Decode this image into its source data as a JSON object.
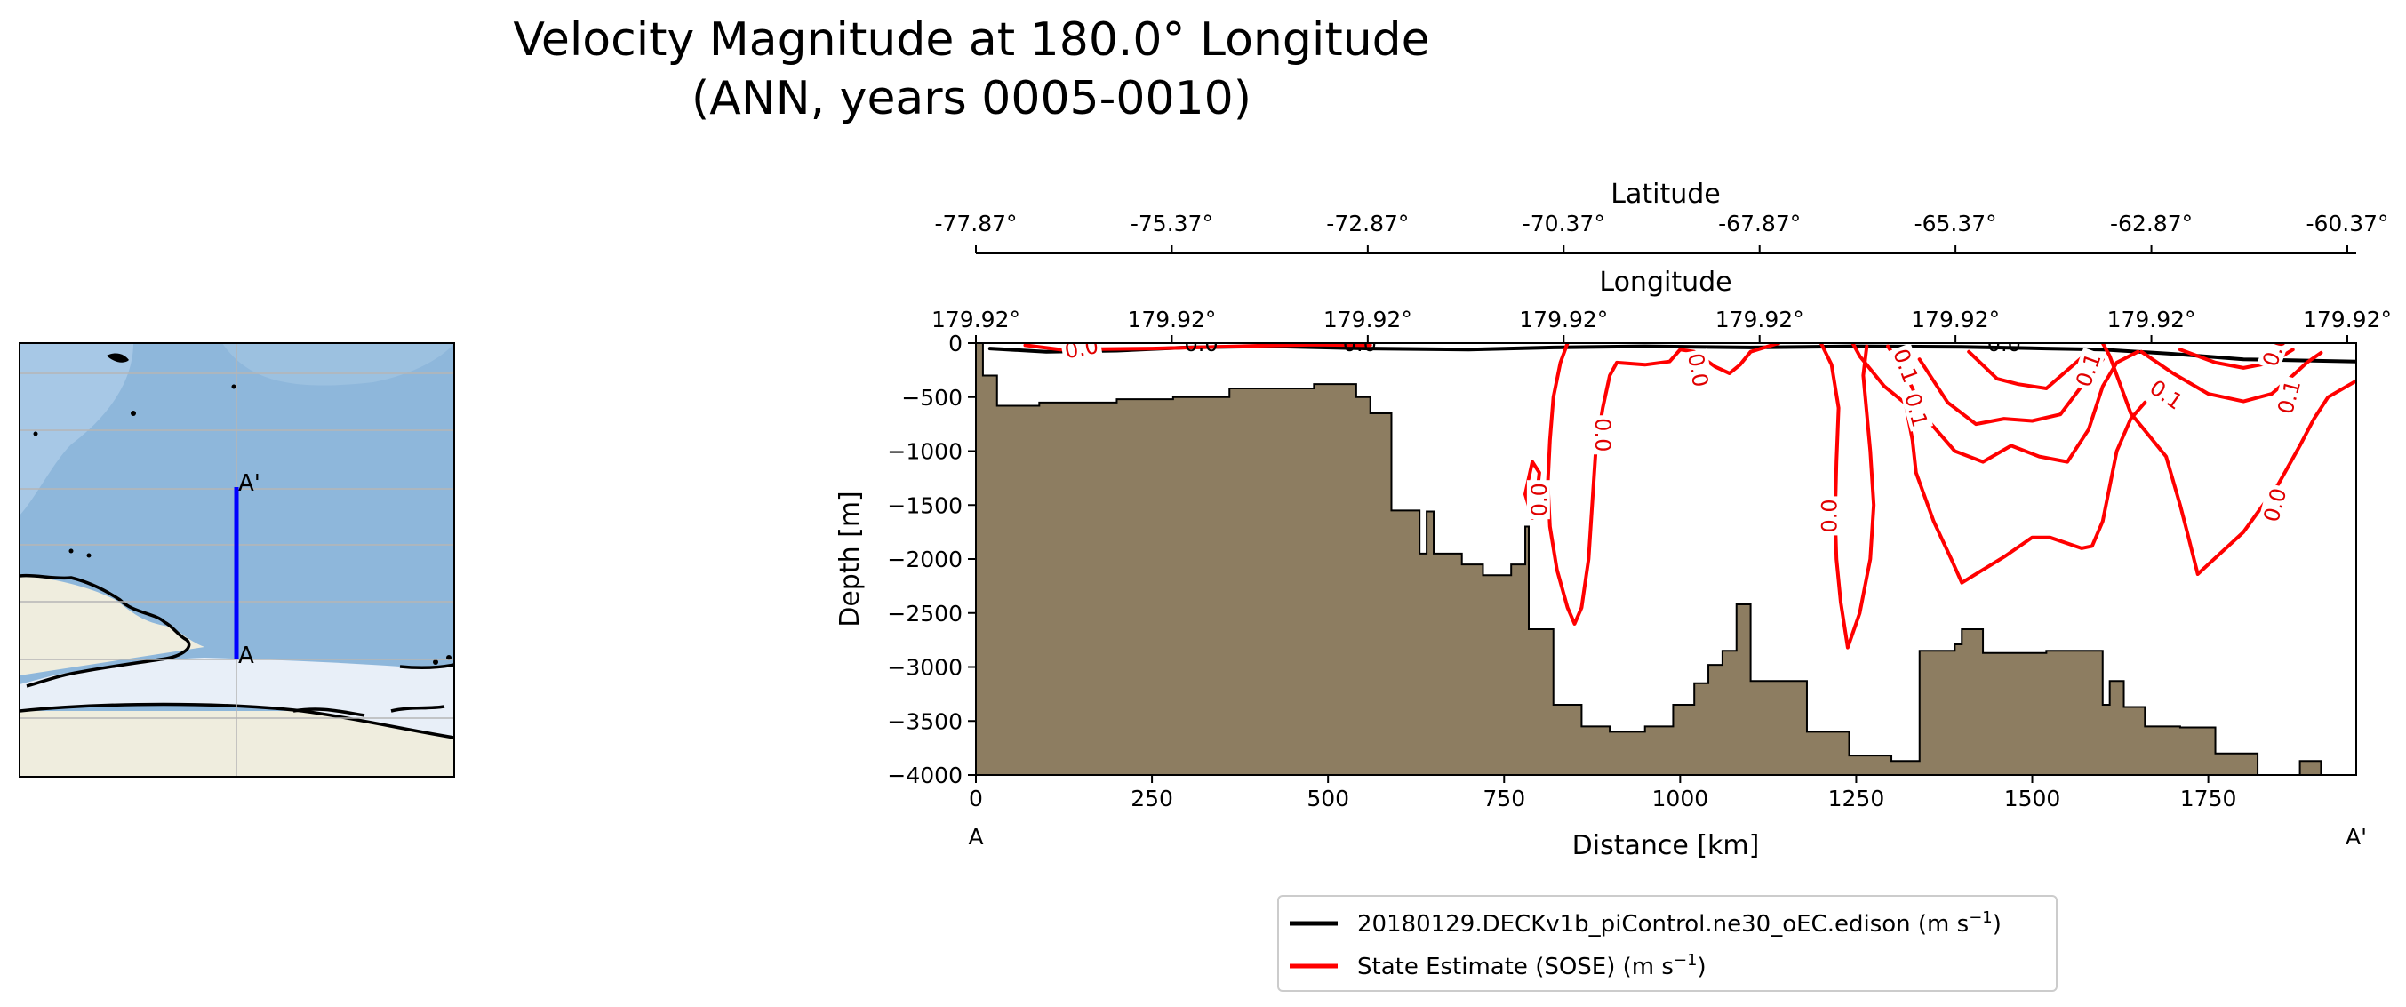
{
  "title": {
    "line1": "Velocity Magnitude at 180.0° Longitude",
    "line2": "(ANN, years 0005-0010)"
  },
  "inset_map": {
    "start_label": "A",
    "end_label": "A'"
  },
  "chart_data": {
    "type": "line",
    "subtype": "transect contour section",
    "xlabel": "Distance [km]",
    "ylabel": "Depth [m]",
    "xlim": [
      0,
      1960
    ],
    "ylim": [
      -4000,
      0
    ],
    "x_ticks": [
      0,
      250,
      500,
      750,
      1000,
      1250,
      1500,
      1750
    ],
    "y_ticks": [
      0,
      -500,
      -1000,
      -1500,
      -2000,
      -2500,
      -3000,
      -3500,
      -4000
    ],
    "x_tick_labels": [
      "0",
      "250",
      "500",
      "750",
      "1000",
      "1250",
      "1500",
      "1750"
    ],
    "y_tick_labels": [
      "0",
      "−500",
      "−1000",
      "−1500",
      "−2000",
      "−2500",
      "−3000",
      "−3500",
      "−4000"
    ],
    "endpoint_labels": {
      "start": "A",
      "end": "A'"
    },
    "secondary_axes": [
      {
        "label": "Longitude",
        "tick_labels": [
          "179.92°",
          "179.92°",
          "179.92°",
          "179.92°",
          "179.92°",
          "179.92°",
          "179.92°",
          "179.92°"
        ]
      },
      {
        "label": "Latitude",
        "tick_labels": [
          "-77.87°",
          "-75.37°",
          "-72.87°",
          "-70.37°",
          "-67.87°",
          "-65.37°",
          "-62.87°",
          "-60.37°"
        ]
      }
    ],
    "bathymetry": [
      [
        0,
        0
      ],
      [
        10,
        0
      ],
      [
        10,
        -300
      ],
      [
        30,
        -300
      ],
      [
        30,
        -580
      ],
      [
        90,
        -580
      ],
      [
        90,
        -550
      ],
      [
        200,
        -550
      ],
      [
        200,
        -520
      ],
      [
        280,
        -520
      ],
      [
        280,
        -500
      ],
      [
        360,
        -500
      ],
      [
        360,
        -420
      ],
      [
        480,
        -420
      ],
      [
        480,
        -380
      ],
      [
        500,
        -380
      ],
      [
        500,
        -380
      ],
      [
        540,
        -380
      ],
      [
        540,
        -500
      ],
      [
        560,
        -500
      ],
      [
        560,
        -650
      ],
      [
        590,
        -650
      ],
      [
        590,
        -1550
      ],
      [
        630,
        -1550
      ],
      [
        630,
        -1950
      ],
      [
        640,
        -1950
      ],
      [
        640,
        -1560
      ],
      [
        650,
        -1560
      ],
      [
        650,
        -1950
      ],
      [
        690,
        -1950
      ],
      [
        690,
        -2050
      ],
      [
        720,
        -2050
      ],
      [
        720,
        -2150
      ],
      [
        760,
        -2150
      ],
      [
        760,
        -2050
      ],
      [
        780,
        -2050
      ],
      [
        780,
        -1700
      ],
      [
        785,
        -1700
      ],
      [
        785,
        -2650
      ],
      [
        820,
        -2650
      ],
      [
        820,
        -3350
      ],
      [
        860,
        -3350
      ],
      [
        860,
        -3550
      ],
      [
        900,
        -3550
      ],
      [
        900,
        -3600
      ],
      [
        950,
        -3600
      ],
      [
        950,
        -3550
      ],
      [
        990,
        -3550
      ],
      [
        990,
        -3350
      ],
      [
        1020,
        -3350
      ],
      [
        1020,
        -3150
      ],
      [
        1040,
        -3150
      ],
      [
        1040,
        -2980
      ],
      [
        1060,
        -2980
      ],
      [
        1060,
        -2850
      ],
      [
        1080,
        -2850
      ],
      [
        1080,
        -2420
      ],
      [
        1100,
        -2420
      ],
      [
        1100,
        -3130
      ],
      [
        1180,
        -3130
      ],
      [
        1180,
        -3600
      ],
      [
        1240,
        -3600
      ],
      [
        1240,
        -3820
      ],
      [
        1300,
        -3820
      ],
      [
        1300,
        -3870
      ],
      [
        1340,
        -3870
      ],
      [
        1340,
        -2850
      ],
      [
        1390,
        -2850
      ],
      [
        1390,
        -2790
      ],
      [
        1400,
        -2790
      ],
      [
        1400,
        -2650
      ],
      [
        1430,
        -2650
      ],
      [
        1430,
        -2870
      ],
      [
        1520,
        -2870
      ],
      [
        1520,
        -2850
      ],
      [
        1600,
        -2850
      ],
      [
        1600,
        -3350
      ],
      [
        1610,
        -3350
      ],
      [
        1610,
        -3130
      ],
      [
        1630,
        -3130
      ],
      [
        1630,
        -3370
      ],
      [
        1660,
        -3370
      ],
      [
        1660,
        -3550
      ],
      [
        1710,
        -3550
      ],
      [
        1710,
        -3560
      ],
      [
        1760,
        -3560
      ],
      [
        1760,
        -3800
      ],
      [
        1820,
        -3800
      ],
      [
        1820,
        -4000
      ],
      [
        1880,
        -4000
      ],
      [
        1880,
        -3870
      ],
      [
        1910,
        -3870
      ],
      [
        1910,
        -4000
      ]
    ],
    "series": [
      {
        "name": "20180129.DECKv1b_piControl.ne30_oEC.edison (m s−1)",
        "legend_label": "20180129.DECKv1b_piControl.ne30_oEC.edison (m s",
        "legend_unit": "−1",
        "color": "#000000",
        "contours": [
          {
            "level": 0.0,
            "points": [
              [
                20,
                -50
              ],
              [
                100,
                -80
              ],
              [
                200,
                -70
              ],
              [
                300,
                -40
              ],
              [
                420,
                -30
              ],
              [
                560,
                -50
              ],
              [
                700,
                -60
              ],
              [
                820,
                -40
              ],
              [
                950,
                -30
              ],
              [
                1100,
                -40
              ],
              [
                1250,
                -30
              ],
              [
                1400,
                -35
              ],
              [
                1520,
                -50
              ],
              [
                1600,
                -60
              ],
              [
                1700,
                -100
              ],
              [
                1800,
                -150
              ],
              [
                1960,
                -170
              ]
            ]
          }
        ],
        "labels": [
          {
            "text": "0.0",
            "x": 320,
            "y": -10
          },
          {
            "text": "0.0",
            "x": 545,
            "y": -10
          },
          {
            "text": "0.0",
            "x": 1460,
            "y": -10
          }
        ]
      },
      {
        "name": "State Estimate (SOSE) (m s−1)",
        "legend_label": "State Estimate (SOSE) (m s",
        "legend_unit": "−1",
        "color": "#ff0000",
        "contours": [
          {
            "level": 0.0,
            "points": [
              [
                70,
                -20
              ],
              [
                120,
                -60
              ],
              [
                250,
                -50
              ],
              [
                400,
                -25
              ],
              [
                480,
                -15
              ],
              [
                560,
                -20
              ]
            ]
          },
          {
            "level": 0.0,
            "points": [
              [
                840,
                0
              ],
              [
                830,
                -180
              ],
              [
                820,
                -500
              ],
              [
                815,
                -900
              ],
              [
                812,
                -1300
              ],
              [
                815,
                -1700
              ],
              [
                825,
                -2100
              ],
              [
                840,
                -2450
              ],
              [
                850,
                -2600
              ],
              [
                860,
                -2450
              ],
              [
                870,
                -2000
              ],
              [
                875,
                -1500
              ],
              [
                880,
                -1000
              ],
              [
                890,
                -600
              ],
              [
                900,
                -300
              ],
              [
                910,
                -180
              ],
              [
                950,
                -200
              ],
              [
                985,
                -170
              ],
              [
                1000,
                -60
              ],
              [
                1020,
                -80
              ],
              [
                1050,
                -220
              ],
              [
                1070,
                -280
              ],
              [
                1085,
                -200
              ],
              [
                1100,
                -80
              ],
              [
                1140,
                0
              ]
            ]
          },
          {
            "level": 0.0,
            "points": [
              [
                790,
                -1620
              ],
              [
                780,
                -1400
              ],
              [
                790,
                -1100
              ],
              [
                800,
                -1200
              ],
              [
                795,
                -1500
              ],
              [
                790,
                -1620
              ]
            ]
          },
          {
            "level": 0.0,
            "points": [
              [
                1200,
                0
              ],
              [
                1215,
                -200
              ],
              [
                1225,
                -600
              ],
              [
                1222,
                -1100
              ],
              [
                1220,
                -1600
              ],
              [
                1222,
                -2000
              ],
              [
                1228,
                -2400
              ],
              [
                1238,
                -2820
              ],
              [
                1255,
                -2500
              ],
              [
                1270,
                -2000
              ],
              [
                1275,
                -1500
              ],
              [
                1270,
                -1000
              ],
              [
                1260,
                -300
              ],
              [
                1265,
                -30
              ]
            ]
          },
          {
            "level": 0.0,
            "points": [
              [
                1600,
                0
              ],
              [
                1610,
                -120
              ],
              [
                1640,
                -650
              ],
              [
                1690,
                -1050
              ],
              [
                1710,
                -1500
              ],
              [
                1720,
                -1750
              ],
              [
                1735,
                -2140
              ],
              [
                1800,
                -1750
              ],
              [
                1850,
                -1300
              ],
              [
                1880,
                -950
              ],
              [
                1900,
                -700
              ],
              [
                1920,
                -500
              ],
              [
                1960,
                -350
              ]
            ]
          },
          {
            "level": 0.1,
            "points": [
              [
                1245,
                0
              ],
              [
                1255,
                -120
              ],
              [
                1290,
                -400
              ],
              [
                1320,
                -560
              ],
              [
                1330,
                -900
              ],
              [
                1335,
                -1200
              ],
              [
                1360,
                -1650
              ],
              [
                1385,
                -2000
              ],
              [
                1400,
                -2220
              ],
              [
                1430,
                -2100
              ],
              [
                1460,
                -1980
              ],
              [
                1500,
                -1800
              ],
              [
                1525,
                -1800
              ],
              [
                1570,
                -1900
              ],
              [
                1585,
                -1880
              ],
              [
                1600,
                -1650
              ],
              [
                1620,
                -1000
              ],
              [
                1640,
                -700
              ],
              [
                1660,
                -550
              ]
            ]
          },
          {
            "level": 0.1,
            "points": [
              [
                1295,
                -30
              ],
              [
                1320,
                -280
              ],
              [
                1350,
                -700
              ],
              [
                1390,
                -1000
              ],
              [
                1430,
                -1100
              ],
              [
                1470,
                -950
              ],
              [
                1510,
                -1050
              ],
              [
                1550,
                -1100
              ],
              [
                1580,
                -800
              ],
              [
                1600,
                -400
              ],
              [
                1620,
                -180
              ],
              [
                1650,
                -80
              ]
            ]
          },
          {
            "level": 0.1,
            "points": [
              [
                1340,
                -150
              ],
              [
                1380,
                -550
              ],
              [
                1420,
                -750
              ],
              [
                1460,
                -700
              ],
              [
                1500,
                -720
              ],
              [
                1540,
                -660
              ],
              [
                1570,
                -400
              ],
              [
                1600,
                -150
              ]
            ]
          },
          {
            "level": 0.1,
            "points": [
              [
                1410,
                -80
              ],
              [
                1450,
                -330
              ],
              [
                1480,
                -380
              ],
              [
                1520,
                -420
              ],
              [
                1550,
                -250
              ],
              [
                1580,
                -80
              ]
            ]
          },
          {
            "level": 0.1,
            "points": [
              [
                1655,
                -80
              ],
              [
                1700,
                -280
              ],
              [
                1750,
                -470
              ],
              [
                1800,
                -540
              ],
              [
                1840,
                -470
              ],
              [
                1870,
                -300
              ],
              [
                1890,
                -180
              ],
              [
                1910,
                -90
              ]
            ]
          },
          {
            "level": 0.1,
            "points": [
              [
                1710,
                -60
              ],
              [
                1760,
                -180
              ],
              [
                1800,
                -230
              ],
              [
                1840,
                -180
              ],
              [
                1870,
                -60
              ]
            ]
          }
        ],
        "labels": [
          {
            "text": "0.0",
            "x": 150,
            "y": -50,
            "angle": -10
          },
          {
            "text": "0.0",
            "x": 1025,
            "y": -250,
            "angle": 80
          },
          {
            "text": "0.0",
            "x": 890,
            "y": -850,
            "angle": 90
          },
          {
            "text": "0.0",
            "x": 800,
            "y": -1450,
            "angle": -90
          },
          {
            "text": "0.0",
            "x": 1212,
            "y": -1600,
            "angle": -90
          },
          {
            "text": "0.0",
            "x": 1845,
            "y": -1500,
            "angle": -75
          },
          {
            "text": "0.1",
            "x": 1320,
            "y": -210,
            "angle": 70
          },
          {
            "text": "0.1",
            "x": 1335,
            "y": -620,
            "angle": 75
          },
          {
            "text": "0.1",
            "x": 1580,
            "y": -250,
            "angle": -70
          },
          {
            "text": "0.1",
            "x": 1690,
            "y": -480,
            "angle": 35
          },
          {
            "text": "0.1",
            "x": 1865,
            "y": -500,
            "angle": -75
          },
          {
            "text": "0.0",
            "x": 1845,
            "y": -60,
            "angle": -70
          }
        ]
      }
    ],
    "colors": {
      "bathymetry": "#8d7d61",
      "ocean": "#8eb7db",
      "land": "#efedde",
      "ice": "#e8eff8",
      "transect": "#0000ff"
    }
  }
}
